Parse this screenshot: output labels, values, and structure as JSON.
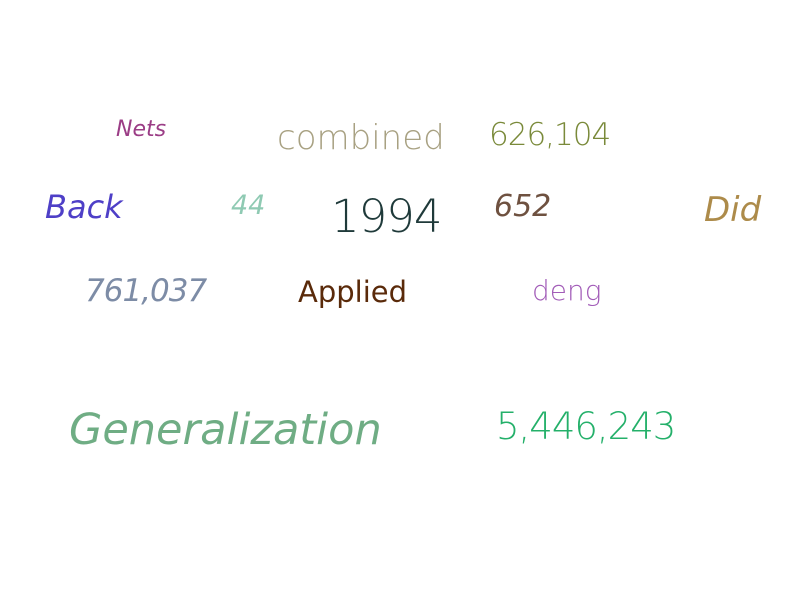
{
  "words": {
    "nets": {
      "text": "Nets",
      "color": "#9b3d86"
    },
    "combined": {
      "text": "combined",
      "color": "#a8a182"
    },
    "n626104": {
      "text": "626,104",
      "color": "#7a8a3a"
    },
    "back": {
      "text": "Back",
      "color": "#4e3fc7"
    },
    "n44": {
      "text": "44",
      "color": "#8fcab3"
    },
    "y1994": {
      "text": "1994",
      "color": "#1f3a3a"
    },
    "n652": {
      "text": "652",
      "color": "#6e5140"
    },
    "did": {
      "text": "Did",
      "color": "#ad8b4a"
    },
    "n761037": {
      "text": "761,037",
      "color": "#7d8ca6"
    },
    "applied": {
      "text": "Applied",
      "color": "#5a2a0a"
    },
    "deng": {
      "text": "deng",
      "color": "#a25cb8"
    },
    "generalization": {
      "text": "Generalization",
      "color": "#6fad84"
    },
    "n5446243": {
      "text": "5,446,243",
      "color": "#24b06a"
    }
  }
}
